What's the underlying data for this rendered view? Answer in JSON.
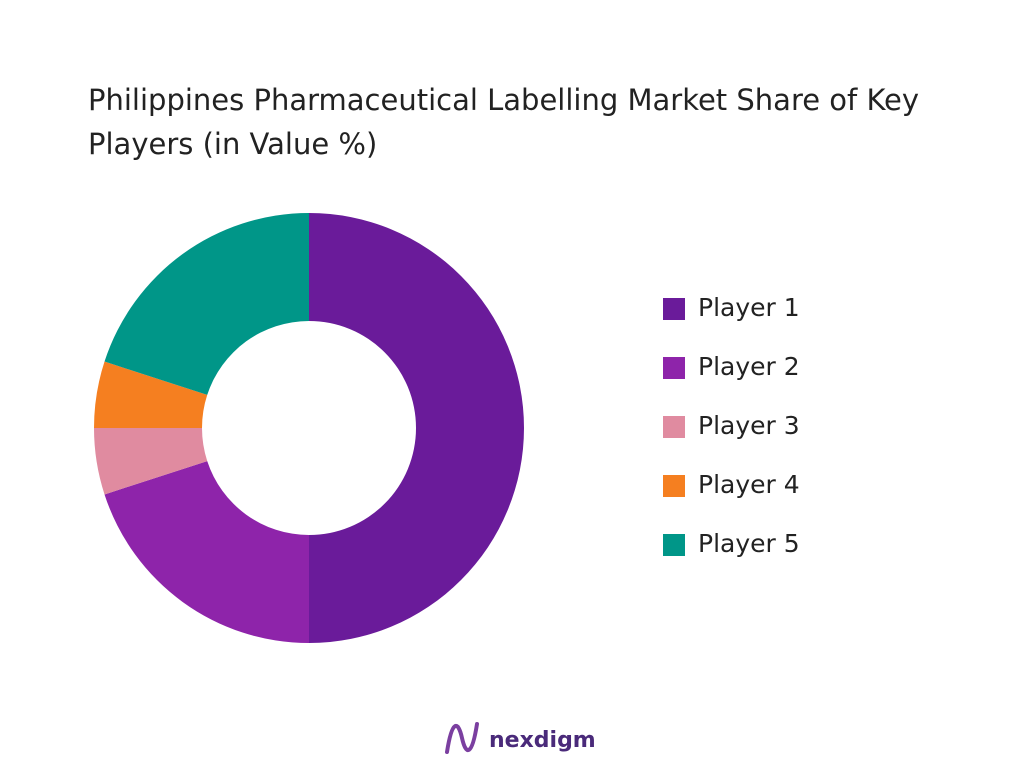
{
  "chart_data": {
    "type": "donut",
    "title": "Philippines Pharmaceutical Labelling Market Share of Key Players (in Value %)",
    "categories": [
      "Player 1",
      "Player 2",
      "Player 3",
      "Player 4",
      "Player 5"
    ],
    "values": [
      50,
      20,
      5,
      5,
      20
    ],
    "colors": [
      "#6a1b9a",
      "#8e24aa",
      "#e08ba0",
      "#f57f20",
      "#009688"
    ],
    "legend": "right"
  },
  "brand": "nexdigm"
}
